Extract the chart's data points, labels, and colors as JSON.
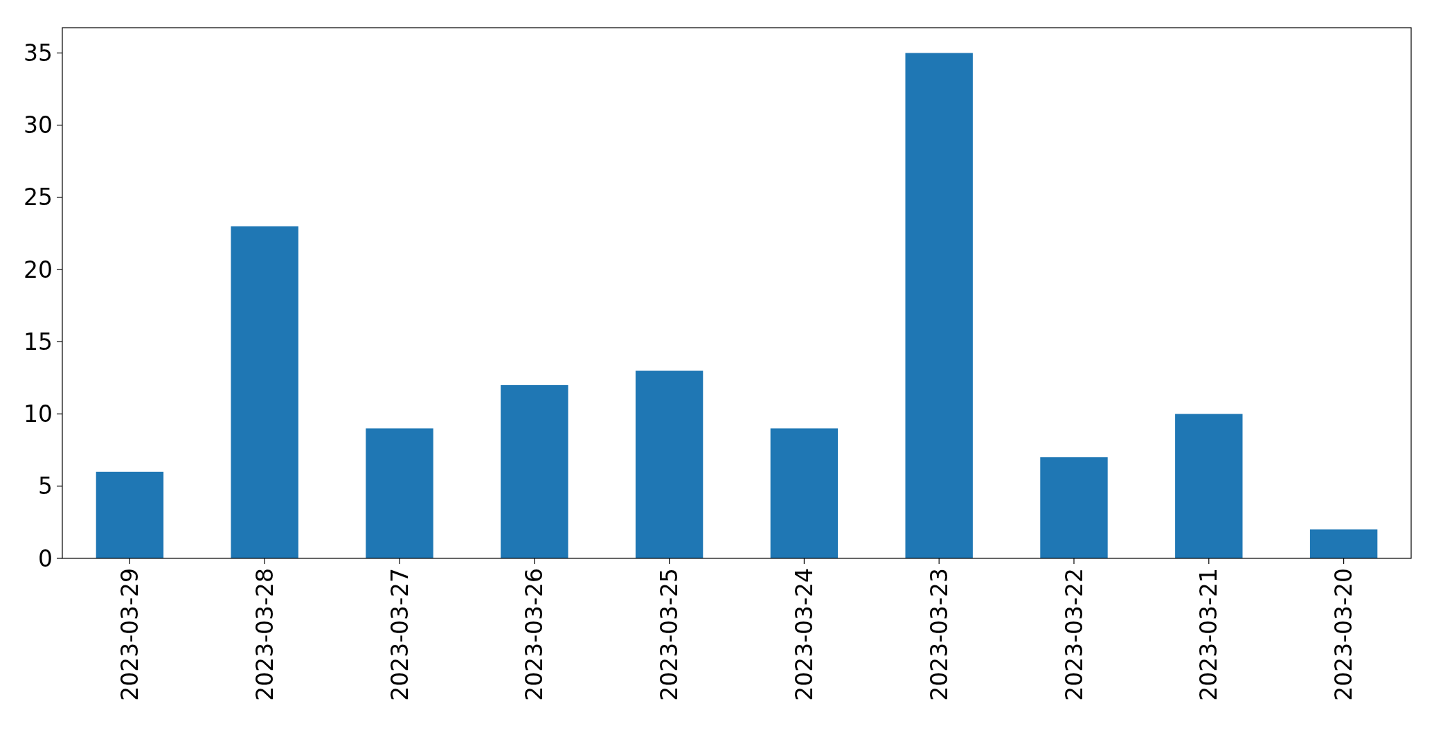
{
  "chart_data": {
    "type": "bar",
    "categories": [
      "2023-03-29",
      "2023-03-28",
      "2023-03-27",
      "2023-03-26",
      "2023-03-25",
      "2023-03-24",
      "2023-03-23",
      "2023-03-22",
      "2023-03-21",
      "2023-03-20"
    ],
    "values": [
      6,
      23,
      9,
      12,
      13,
      9,
      35,
      7,
      10,
      2
    ],
    "color": "#1f77b4",
    "ylim": [
      0,
      36.75
    ],
    "yticks": [
      0,
      5,
      10,
      15,
      20,
      25,
      30,
      35
    ],
    "grid": false
  }
}
